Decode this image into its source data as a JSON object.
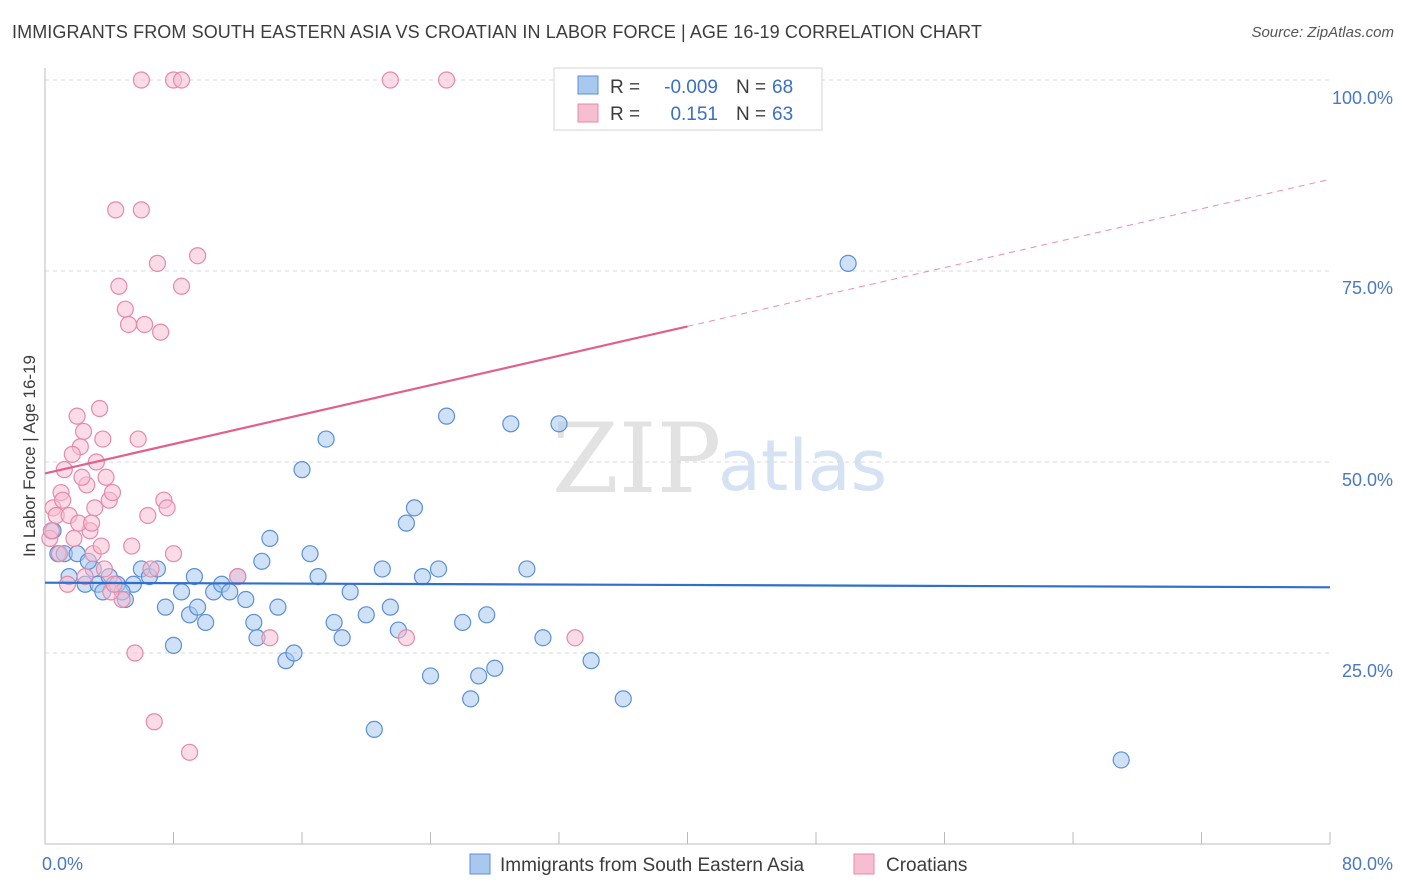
{
  "title": "IMMIGRANTS FROM SOUTH EASTERN ASIA VS CROATIAN IN LABOR FORCE | AGE 16-19 CORRELATION CHART",
  "source": "Source: ZipAtlas.com",
  "watermark": {
    "zip": "ZIP",
    "atlas": "atlas"
  },
  "colors": {
    "blue_fill": "#a8c8ee",
    "blue_stroke": "#5b8fd6",
    "blue_line": "#2f6fce",
    "pink_fill": "#f7bdd0",
    "pink_stroke": "#e58aa8",
    "pink_line": "#e0608e",
    "grid": "#d9d9d9"
  },
  "legend": {
    "rows": [
      {
        "r_label": "R =",
        "r_value": "-0.009",
        "n_label": "N =",
        "n_value": "68",
        "series": "blue"
      },
      {
        "r_label": "R =",
        "r_value": "0.151",
        "n_label": "N =",
        "n_value": "63",
        "series": "pink"
      }
    ]
  },
  "chart_data": {
    "type": "scatter",
    "xlabel": "",
    "ylabel": "In Labor Force | Age 16-19",
    "xlim": [
      0,
      80
    ],
    "ylim": [
      0,
      105
    ],
    "x_tick_labels": [
      "0.0%",
      "80.0%"
    ],
    "y_tick_labels": [
      "25.0%",
      "50.0%",
      "75.0%",
      "100.0%"
    ],
    "y_ticks": [
      25,
      50,
      75,
      100
    ],
    "legend_position": "bottom",
    "series": [
      {
        "name": "Immigrants from South Eastern Asia",
        "color": "blue",
        "points": [
          [
            0.5,
            41
          ],
          [
            0.8,
            38
          ],
          [
            1.2,
            38
          ],
          [
            1.5,
            35
          ],
          [
            2.0,
            38
          ],
          [
            2.5,
            34
          ],
          [
            3.0,
            36
          ],
          [
            3.3,
            34
          ],
          [
            3.6,
            33
          ],
          [
            4.0,
            35
          ],
          [
            4.5,
            34
          ],
          [
            5.0,
            32
          ],
          [
            5.5,
            34
          ],
          [
            6.0,
            36
          ],
          [
            6.5,
            35
          ],
          [
            7.0,
            36
          ],
          [
            7.5,
            31
          ],
          [
            8.0,
            26
          ],
          [
            8.5,
            33
          ],
          [
            9.0,
            30
          ],
          [
            9.5,
            31
          ],
          [
            10.0,
            29
          ],
          [
            10.5,
            33
          ],
          [
            11.0,
            34
          ],
          [
            11.5,
            33
          ],
          [
            12.0,
            35
          ],
          [
            12.5,
            32
          ],
          [
            13.0,
            29
          ],
          [
            13.5,
            37
          ],
          [
            14.0,
            40
          ],
          [
            14.5,
            31
          ],
          [
            15.0,
            24
          ],
          [
            15.5,
            25
          ],
          [
            16.0,
            49
          ],
          [
            16.5,
            38
          ],
          [
            17.0,
            35
          ],
          [
            17.5,
            53
          ],
          [
            18.0,
            29
          ],
          [
            18.5,
            27
          ],
          [
            19.0,
            33
          ],
          [
            20.0,
            30
          ],
          [
            20.5,
            15
          ],
          [
            21.0,
            36
          ],
          [
            21.5,
            31
          ],
          [
            22.0,
            28
          ],
          [
            22.5,
            42
          ],
          [
            23.0,
            44
          ],
          [
            23.5,
            35
          ],
          [
            24.0,
            22
          ],
          [
            24.5,
            36
          ],
          [
            25.0,
            56
          ],
          [
            26.0,
            29
          ],
          [
            26.5,
            19
          ],
          [
            27.0,
            22
          ],
          [
            27.5,
            30
          ],
          [
            28.0,
            23
          ],
          [
            29.0,
            55
          ],
          [
            30.0,
            36
          ],
          [
            31.0,
            27
          ],
          [
            32.0,
            55
          ],
          [
            34.0,
            24
          ],
          [
            36.0,
            19
          ],
          [
            50.0,
            76
          ],
          [
            67.0,
            11
          ],
          [
            2.7,
            37
          ],
          [
            4.8,
            33
          ],
          [
            9.3,
            35
          ],
          [
            13.2,
            27
          ]
        ]
      },
      {
        "name": "Croatians",
        "color": "pink",
        "points": [
          [
            0.3,
            40
          ],
          [
            0.5,
            44
          ],
          [
            0.7,
            43
          ],
          [
            1.0,
            46
          ],
          [
            1.2,
            49
          ],
          [
            1.5,
            43
          ],
          [
            1.8,
            40
          ],
          [
            2.0,
            56
          ],
          [
            2.2,
            52
          ],
          [
            2.4,
            54
          ],
          [
            2.6,
            47
          ],
          [
            2.8,
            41
          ],
          [
            3.0,
            38
          ],
          [
            3.2,
            50
          ],
          [
            3.4,
            57
          ],
          [
            3.6,
            53
          ],
          [
            3.8,
            48
          ],
          [
            4.0,
            45
          ],
          [
            4.2,
            46
          ],
          [
            4.4,
            83
          ],
          [
            4.6,
            73
          ],
          [
            4.8,
            32
          ],
          [
            5.0,
            70
          ],
          [
            5.2,
            68
          ],
          [
            5.4,
            39
          ],
          [
            5.6,
            25
          ],
          [
            5.8,
            53
          ],
          [
            6.0,
            83
          ],
          [
            6.2,
            68
          ],
          [
            6.4,
            43
          ],
          [
            6.6,
            36
          ],
          [
            6.8,
            16
          ],
          [
            7.0,
            76
          ],
          [
            7.2,
            67
          ],
          [
            7.4,
            45
          ],
          [
            7.6,
            44
          ],
          [
            8.0,
            38
          ],
          [
            8.5,
            73
          ],
          [
            9.0,
            12
          ],
          [
            9.5,
            77
          ],
          [
            12.0,
            35
          ],
          [
            14.0,
            27
          ],
          [
            6.0,
            100
          ],
          [
            8.0,
            100
          ],
          [
            8.5,
            100
          ],
          [
            21.5,
            100
          ],
          [
            25.0,
            100
          ],
          [
            22.5,
            27
          ],
          [
            33.0,
            27
          ],
          [
            1.4,
            34
          ],
          [
            2.1,
            42
          ],
          [
            2.5,
            35
          ],
          [
            3.1,
            44
          ],
          [
            3.5,
            39
          ],
          [
            4.1,
            33
          ],
          [
            0.9,
            38
          ],
          [
            1.1,
            45
          ],
          [
            1.7,
            51
          ],
          [
            2.3,
            48
          ],
          [
            2.9,
            42
          ],
          [
            3.7,
            36
          ],
          [
            4.3,
            34
          ],
          [
            0.4,
            41
          ]
        ]
      }
    ],
    "trend_lines": [
      {
        "series": "Immigrants from South Eastern Asia",
        "x": [
          0,
          80
        ],
        "y": [
          34.2,
          33.6
        ],
        "dashed_from": null
      },
      {
        "series": "Croatians",
        "x": [
          0,
          80
        ],
        "y": [
          48.5,
          87.0
        ],
        "solid_until": 40
      }
    ]
  },
  "bottom_legend": {
    "items": [
      {
        "label": "Immigrants from South Eastern Asia",
        "series": "blue"
      },
      {
        "label": "Croatians",
        "series": "pink"
      }
    ]
  }
}
